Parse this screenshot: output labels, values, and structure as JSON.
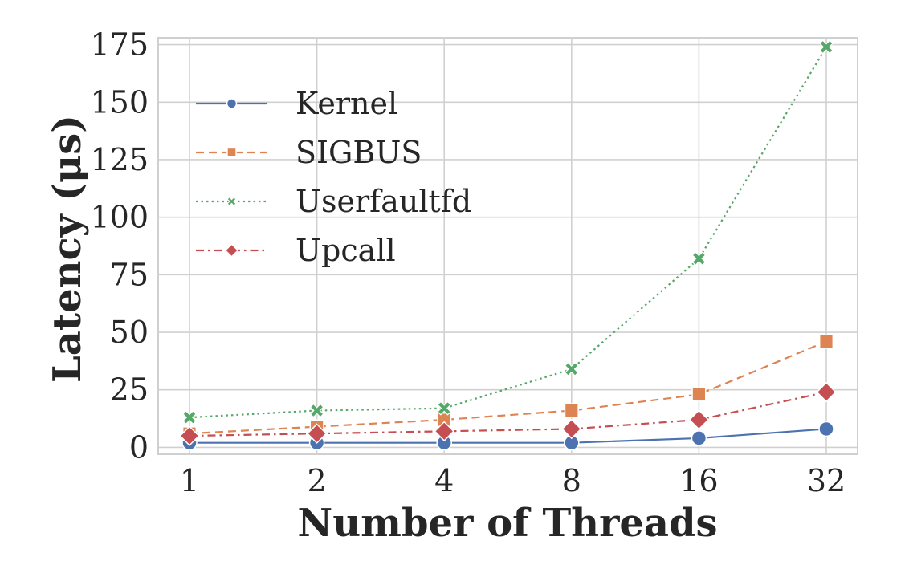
{
  "chart_data": {
    "type": "line",
    "xlabel": "Number of Threads",
    "ylabel": "Latency (μs)",
    "categories": [
      "1",
      "2",
      "4",
      "8",
      "16",
      "32"
    ],
    "x": [
      1,
      2,
      4,
      8,
      16,
      32
    ],
    "x_scale": "log2",
    "ylim": [
      -3,
      178
    ],
    "yticks": [
      0,
      25,
      50,
      75,
      100,
      125,
      150,
      175
    ],
    "grid": true,
    "legend_position": "upper-left",
    "series": [
      {
        "name": "Kernel",
        "values": [
          2,
          2,
          2,
          2,
          4,
          8
        ],
        "color": "#4c72b0",
        "marker": "circle",
        "line_style": "solid"
      },
      {
        "name": "SIGBUS",
        "values": [
          6,
          9,
          12,
          16,
          23,
          46
        ],
        "color": "#dd8452",
        "marker": "square",
        "line_style": "dashed"
      },
      {
        "name": "Userfaultfd",
        "values": [
          13,
          16,
          17,
          34,
          82,
          174
        ],
        "color": "#55a868",
        "marker": "x",
        "line_style": "dotted"
      },
      {
        "name": "Upcall",
        "values": [
          5,
          6,
          7,
          8,
          12,
          24
        ],
        "color": "#c44e52",
        "marker": "diamond",
        "line_style": "dashdot"
      }
    ]
  }
}
